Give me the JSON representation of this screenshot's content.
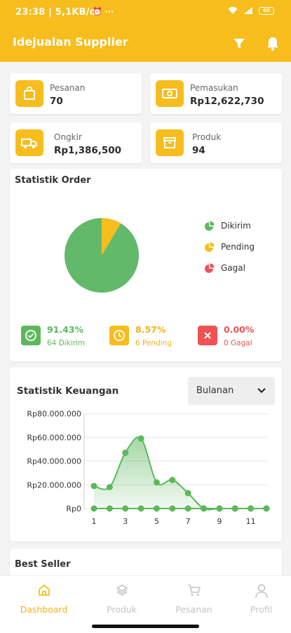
{
  "statusbar": {
    "time": "23:38 | 5,1KB/d",
    "extra": "⏰ ···",
    "battery": "60"
  },
  "appbar": {
    "title": "Idejualan Supplier"
  },
  "stats": [
    {
      "label": "Pesanan",
      "value": "70"
    },
    {
      "label": "Pemasukan",
      "value": "Rp12,622,730"
    },
    {
      "label": "Ongkir",
      "value": "Rp1,386,500"
    },
    {
      "label": "Produk",
      "value": "94"
    }
  ],
  "order_stats": {
    "title": "Statistik Order",
    "legend": [
      "Dikirim",
      "Pending",
      "Gagal"
    ],
    "dikirim": {
      "pct": "91.43%",
      "count": "64 Dikirim"
    },
    "pending": {
      "pct": "8.57%",
      "count": "6 Pending"
    },
    "gagal": {
      "pct": "0.00%",
      "count": "0 Gagal"
    }
  },
  "finance": {
    "title": "Statistik Keuangan",
    "period": "Bulanan",
    "y_ticks": [
      "Rp80.000.000",
      "Rp60.000.000",
      "Rp40.000.000",
      "Rp20.000.000",
      "Rp0"
    ],
    "x_ticks": [
      "1",
      "3",
      "5",
      "7",
      "9",
      "11"
    ]
  },
  "best_seller": {
    "title": "Best Seller"
  },
  "nav": [
    {
      "label": "Dashboard"
    },
    {
      "label": "Produk"
    },
    {
      "label": "Pesanan"
    },
    {
      "label": "Profil"
    }
  ],
  "colors": {
    "accent": "#f7bd1c",
    "green": "#5cb85c",
    "red": "#ee5253",
    "nav_inactive": "#c4c4c4"
  },
  "chart_data": [
    {
      "type": "pie",
      "labels": [
        "Dikirim",
        "Pending",
        "Gagal"
      ],
      "values": [
        64,
        6,
        0
      ],
      "colors": [
        "#62b96a",
        "#f7bd1c",
        "#ee5253"
      ]
    },
    {
      "type": "area",
      "title": "Statistik Keuangan",
      "x": [
        1,
        2,
        3,
        4,
        5,
        6,
        7,
        8,
        9,
        10,
        11,
        12
      ],
      "series": [
        {
          "values": [
            19000000,
            18000000,
            47000000,
            59000000,
            22000000,
            24000000,
            13000000,
            0,
            0,
            0,
            0,
            0
          ]
        },
        {
          "values": [
            0,
            0,
            0,
            0,
            0,
            0,
            0,
            0,
            0,
            0,
            0,
            0
          ]
        }
      ],
      "ylim": [
        0,
        80000000
      ],
      "x_ticks": [
        1,
        3,
        5,
        7,
        9,
        11
      ],
      "grid": true
    }
  ]
}
